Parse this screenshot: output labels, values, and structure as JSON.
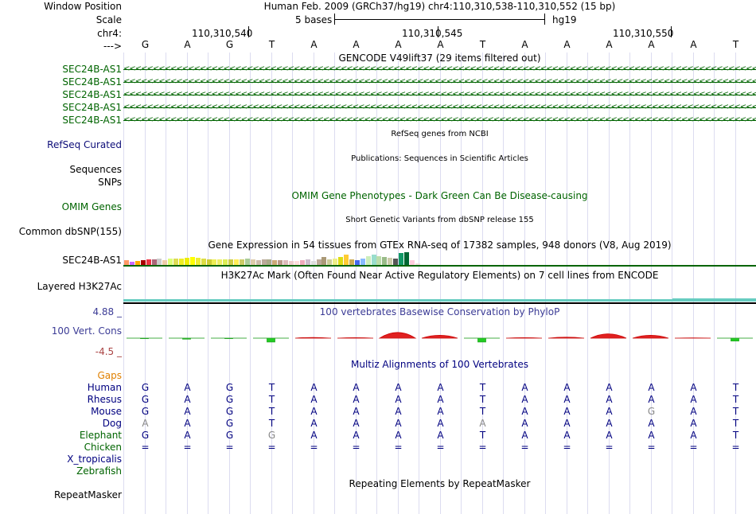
{
  "header": {
    "window_position_label": "Window Position",
    "scale_label": "Scale",
    "chr_label": "chr4:",
    "arrow_label": "--->",
    "title": "Human Feb. 2009 (GRCh37/hg19)   chr4:110,310,538-110,310,552 (15 bp)",
    "scale_text": "5 bases",
    "assembly": "hg19",
    "positions": [
      "110,310,540",
      "110,310,545",
      "110,310,550"
    ]
  },
  "sequence": [
    "G",
    "A",
    "G",
    "T",
    "A",
    "A",
    "A",
    "A",
    "T",
    "A",
    "A",
    "A",
    "A",
    "A",
    "T"
  ],
  "gencode": {
    "title": "GENCODE V49lift37 (29 items filtered out)",
    "genes": [
      "SEC24B-AS1",
      "SEC24B-AS1",
      "SEC24B-AS1",
      "SEC24B-AS1",
      "SEC24B-AS1"
    ]
  },
  "refseq": {
    "title": "RefSeq genes from NCBI",
    "label": "RefSeq Curated"
  },
  "publications": {
    "title": "Publications: Sequences in Scientific Articles",
    "label_sequences": "Sequences",
    "label_snps": "SNPs"
  },
  "omim": {
    "title": "OMIM Gene Phenotypes - Dark Green Can Be Disease-causing",
    "label": "OMIM Genes"
  },
  "dbsnp": {
    "title": "Short Genetic Variants from dbSNP release 155",
    "label": "Common dbSNP(155)"
  },
  "gtex": {
    "title": "Gene Expression in 54 tissues from GTEx RNA-seq of 17382 samples, 948 donors (V8, Aug 2019)",
    "label": "SEC24B-AS1",
    "values": [
      6,
      4,
      5,
      6,
      7,
      7,
      8,
      6,
      8,
      8,
      8,
      9,
      10,
      9,
      8,
      7,
      7,
      7,
      7,
      7,
      7,
      7,
      8,
      7,
      6,
      7,
      7,
      6,
      6,
      6,
      5,
      5,
      6,
      7,
      5,
      7,
      10,
      7,
      8,
      10,
      12,
      7,
      6,
      8,
      11,
      12,
      11,
      10,
      9,
      8,
      14,
      15,
      6,
      3
    ],
    "colors": [
      "#FF9966",
      "#CC66FF",
      "#FFAA00",
      "#AA0000",
      "#EE3344",
      "#AA6677",
      "#CCCCCC",
      "#EECCAA",
      "#DDFF77",
      "#DDDD55",
      "#EEEE22",
      "#EEEE00",
      "#FFFF00",
      "#EEEE33",
      "#DDDD44",
      "#CCCC33",
      "#EEEE55",
      "#EEEE66",
      "#DDEE55",
      "#CCCC44",
      "#FFEE55",
      "#CCCC66",
      "#AACC99",
      "#DDCCAA",
      "#CCBBAA",
      "#BBAA99",
      "#AAAA88",
      "#CCAA77",
      "#BB9988",
      "#DDBBBB",
      "#EECCCC",
      "#FFDDDD",
      "#EEAABB",
      "#CCBBCC",
      "#DDDDDD",
      "#BBAA99",
      "#AA9977",
      "#CCCC99",
      "#EEEE88",
      "#DDDD11",
      "#FFCC33",
      "#CCAA55",
      "#4466EE",
      "#88BBFF",
      "#CCEEBB",
      "#99DDCC",
      "#BBDDAA",
      "#99BB88",
      "#CCCCAA",
      "#555555",
      "#119966",
      "#006633",
      "#FFCCDD",
      "#EEDDDD"
    ]
  },
  "h3k27ac": {
    "title": "H3K27Ac Mark (Often Found Near Active Regulatory Elements) on 7 cell lines from ENCODE",
    "label": "Layered H3K27Ac"
  },
  "cons": {
    "title": "100 vertebrates Basewise Conservation by PhyloP",
    "label": "100 Vert. Cons",
    "ymax": "4.88 _",
    "ymin": "-4.5 _",
    "scores": [
      -0.05,
      -0.1,
      -0.05,
      -0.4,
      0.15,
      0.1,
      1.2,
      0.6,
      -0.4,
      0.1,
      0.2,
      0.9,
      0.6,
      0.05,
      -0.3
    ]
  },
  "multiz": {
    "title": "Multiz Alignments of 100 Vertebrates",
    "gaps_label": "Gaps",
    "species": [
      {
        "name": "Human",
        "bases": [
          "G",
          "A",
          "G",
          "T",
          "A",
          "A",
          "A",
          "A",
          "T",
          "A",
          "A",
          "A",
          "A",
          "A",
          "T"
        ]
      },
      {
        "name": "Rhesus",
        "bases": [
          "G",
          "A",
          "G",
          "T",
          "A",
          "A",
          "A",
          "A",
          "T",
          "A",
          "A",
          "A",
          "A",
          "A",
          "T"
        ]
      },
      {
        "name": "Mouse",
        "bases": [
          "G",
          "A",
          "G",
          "T",
          "A",
          "A",
          "A",
          "A",
          "T",
          "A",
          "A",
          "A",
          "G",
          "A",
          "T"
        ]
      },
      {
        "name": "Dog",
        "bases": [
          "A",
          "A",
          "G",
          "T",
          "A",
          "A",
          "A",
          "A",
          "A",
          "A",
          "A",
          "A",
          "A",
          "A",
          "T"
        ]
      },
      {
        "name": "Elephant",
        "bases": [
          "G",
          "A",
          "G",
          "G",
          "A",
          "A",
          "A",
          "A",
          "T",
          "A",
          "A",
          "A",
          "A",
          "A",
          "T"
        ]
      },
      {
        "name": "Chicken",
        "bases": [
          "=",
          "=",
          "=",
          "=",
          "=",
          "=",
          "=",
          "=",
          "=",
          "=",
          "=",
          "=",
          "=",
          "=",
          "="
        ]
      }
    ],
    "extra_species": [
      "X_tropicalis",
      "Zebrafish"
    ]
  },
  "repeatmasker": {
    "title": "Repeating Elements by RepeatMasker",
    "label": "RepeatMasker"
  },
  "colors": {
    "gene_green": "#006400",
    "navy": "#000080",
    "cons_blue": "#3c3c96",
    "refseq_navy": "#0c0c78",
    "gaps_orange": "#e08000",
    "grid": "#dcdcf0",
    "h3k27ac_cyan": "#66ccc0"
  }
}
